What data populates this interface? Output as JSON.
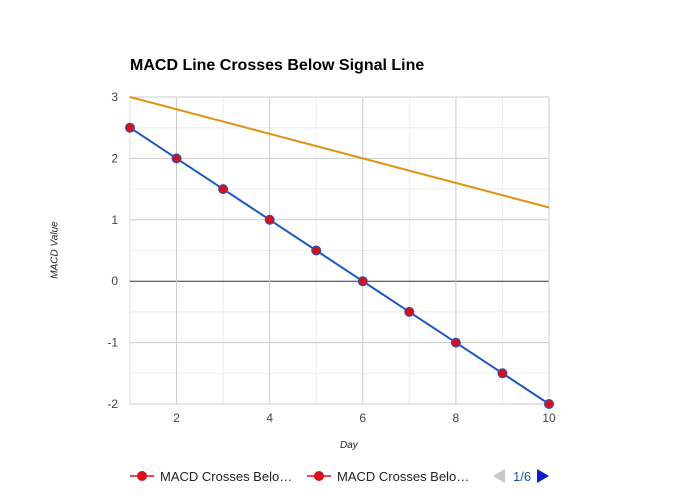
{
  "chart_data": {
    "type": "line",
    "title": "MACD Line Crosses Below Signal Line",
    "xlabel": "Day",
    "ylabel": "MACD Value",
    "xlim": [
      1,
      10
    ],
    "ylim": [
      -2,
      3
    ],
    "x_ticks": [
      2,
      4,
      6,
      8,
      10
    ],
    "y_ticks": [
      -2,
      -1,
      0,
      1,
      2,
      3
    ],
    "grid": true,
    "legend_position": "bottom",
    "series": [
      {
        "name": "MACD Crosses Belo…",
        "color": "#1a57c9",
        "marker_color": "#dc0f18",
        "x": [
          1,
          2,
          3,
          4,
          5,
          6,
          7,
          8,
          9,
          10
        ],
        "values": [
          2.5,
          2.0,
          1.5,
          1.0,
          0.5,
          0.0,
          -0.5,
          -1.0,
          -1.5,
          -2.0
        ]
      },
      {
        "name": "MACD Crosses Belo…",
        "color": "#e09414",
        "x": [
          1,
          10
        ],
        "values": [
          3.0,
          1.2
        ]
      }
    ]
  },
  "legend": {
    "items": [
      {
        "label": "MACD Crosses Belo…",
        "color": "#dc0f18"
      },
      {
        "label": "MACD Crosses Belo…",
        "color": "#dc0f18"
      }
    ],
    "pager": "1/6"
  }
}
